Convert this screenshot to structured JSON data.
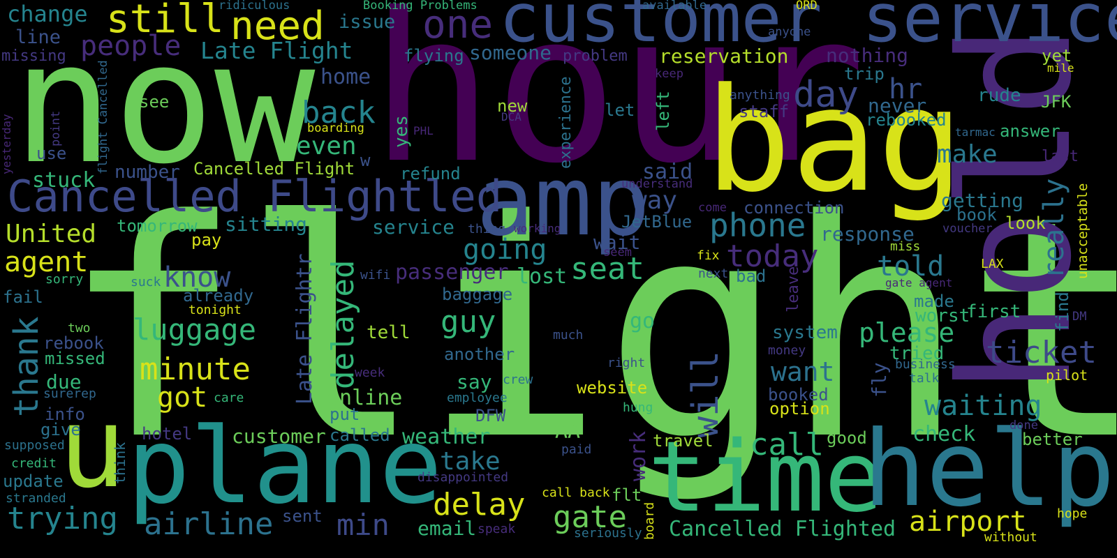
{
  "words": [
    {
      "text": "flight",
      "color": "#6ccd5a",
      "vertical": false
    },
    {
      "text": "hour",
      "color": "#440154",
      "vertical": false
    },
    {
      "text": "now",
      "color": "#6ccd5a",
      "vertical": false
    },
    {
      "text": "hold",
      "color": "#482878",
      "vertical": true
    },
    {
      "text": "bag",
      "color": "#d8e219",
      "vertical": false
    },
    {
      "text": "customer service",
      "color": "#3b528b",
      "vertical": false
    },
    {
      "text": "plane",
      "color": "#21918c",
      "vertical": false
    },
    {
      "text": "u",
      "color": "#a0da39",
      "vertical": false
    },
    {
      "text": "time",
      "color": "#35b779",
      "vertical": false
    },
    {
      "text": "help",
      "color": "#2a788e",
      "vertical": false
    },
    {
      "text": "amp",
      "color": "#3b528b",
      "vertical": false
    },
    {
      "text": "Cancelled Flightled",
      "color": "#3e4a89",
      "vertical": false
    },
    {
      "text": "delayed",
      "color": "#35b779",
      "vertical": true
    },
    {
      "text": "still",
      "color": "#d8e219",
      "vertical": false
    },
    {
      "text": "need",
      "color": "#d8e219",
      "vertical": false
    },
    {
      "text": "one",
      "color": "#472d7b",
      "vertical": false
    },
    {
      "text": "people",
      "color": "#472d7b",
      "vertical": false
    },
    {
      "text": "Late Flight",
      "color": "#25848e",
      "vertical": false
    },
    {
      "text": "change",
      "color": "#25848e",
      "vertical": false
    },
    {
      "text": "issue",
      "color": "#2a788e",
      "vertical": false
    },
    {
      "text": "line",
      "color": "#3b528b",
      "vertical": false
    },
    {
      "text": "missing",
      "color": "#443983",
      "vertical": false
    },
    {
      "text": "ridiculous",
      "color": "#2c728e",
      "vertical": false
    },
    {
      "text": "Booking Problems",
      "color": "#35b779",
      "vertical": false
    },
    {
      "text": "available",
      "color": "#31688e",
      "vertical": false
    },
    {
      "text": "ORD",
      "color": "#d8e219",
      "vertical": false
    },
    {
      "text": "anyone",
      "color": "#3b528b",
      "vertical": false
    },
    {
      "text": "reservation",
      "color": "#b5de2b",
      "vertical": false
    },
    {
      "text": "nothing",
      "color": "#472d7b",
      "vertical": false
    },
    {
      "text": "yet",
      "color": "#a0da39",
      "vertical": false
    },
    {
      "text": "mile",
      "color": "#d8e219",
      "vertical": false
    },
    {
      "text": "flying",
      "color": "#2a788e",
      "vertical": false
    },
    {
      "text": "someone",
      "color": "#31688e",
      "vertical": false
    },
    {
      "text": "problem",
      "color": "#443983",
      "vertical": false
    },
    {
      "text": "home",
      "color": "#3b528b",
      "vertical": false
    },
    {
      "text": "keep",
      "color": "#482878",
      "vertical": false
    },
    {
      "text": "trip",
      "color": "#2a788e",
      "vertical": false
    },
    {
      "text": "day",
      "color": "#3e4a89",
      "vertical": false
    },
    {
      "text": "hr",
      "color": "#3b528b",
      "vertical": false
    },
    {
      "text": "rude",
      "color": "#25848e",
      "vertical": false
    },
    {
      "text": "anything",
      "color": "#3b528b",
      "vertical": false
    },
    {
      "text": "JFK",
      "color": "#6ccd5a",
      "vertical": false
    },
    {
      "text": "never",
      "color": "#31688e",
      "vertical": false
    },
    {
      "text": "staff",
      "color": "#443983",
      "vertical": false
    },
    {
      "text": "rebooked",
      "color": "#25848e",
      "vertical": false
    },
    {
      "text": "tarmac",
      "color": "#31688e",
      "vertical": false
    },
    {
      "text": "answer",
      "color": "#35b779",
      "vertical": false
    },
    {
      "text": "last",
      "color": "#482878",
      "vertical": false
    },
    {
      "text": "back",
      "color": "#25848e",
      "vertical": false
    },
    {
      "text": "see",
      "color": "#6ccd5a",
      "vertical": false
    },
    {
      "text": "new",
      "color": "#a0da39",
      "vertical": false
    },
    {
      "text": "let",
      "color": "#2a788e",
      "vertical": false
    },
    {
      "text": "DCA",
      "color": "#443983",
      "vertical": false
    },
    {
      "text": "PHL",
      "color": "#482878",
      "vertical": false
    },
    {
      "text": "boarding",
      "color": "#d8e219",
      "vertical": false
    },
    {
      "text": "experience",
      "color": "#2c728e",
      "vertical": true
    },
    {
      "text": "left",
      "color": "#35b779",
      "vertical": true
    },
    {
      "text": "yes",
      "color": "#35b779",
      "vertical": true
    },
    {
      "text": "even",
      "color": "#35b779",
      "vertical": false
    },
    {
      "text": "make",
      "color": "#2a788e",
      "vertical": false
    },
    {
      "text": "thank",
      "color": "#2a788e",
      "vertical": true
    },
    {
      "text": "number",
      "color": "#3b528b",
      "vertical": false
    },
    {
      "text": "Cancelled Flight",
      "color": "#a0da39",
      "vertical": false
    },
    {
      "text": "w",
      "color": "#3b528b",
      "vertical": false
    },
    {
      "text": "refund",
      "color": "#25848e",
      "vertical": false
    },
    {
      "text": "said",
      "color": "#3b528b",
      "vertical": false
    },
    {
      "text": "understand",
      "color": "#472d7b",
      "vertical": false
    },
    {
      "text": "getting",
      "color": "#2a788e",
      "vertical": false
    },
    {
      "text": "really",
      "color": "#2c728e",
      "vertical": true
    },
    {
      "text": "unacceptable",
      "color": "#d8e219",
      "vertical": true
    },
    {
      "text": "stuck",
      "color": "#35b779",
      "vertical": false
    },
    {
      "text": "use",
      "color": "#3b528b",
      "vertical": false
    },
    {
      "text": "point",
      "color": "#443983",
      "vertical": true
    },
    {
      "text": "flight Cancelled",
      "color": "#31688e",
      "vertical": true
    },
    {
      "text": "yesterday",
      "color": "#482878",
      "vertical": true
    },
    {
      "text": "way",
      "color": "#3b528b",
      "vertical": false
    },
    {
      "text": "come",
      "color": "#482878",
      "vertical": false
    },
    {
      "text": "connection",
      "color": "#3b528b",
      "vertical": false
    },
    {
      "text": "book",
      "color": "#2c728e",
      "vertical": false
    },
    {
      "text": "voucher",
      "color": "#443983",
      "vertical": false
    },
    {
      "text": "look",
      "color": "#b5de2b",
      "vertical": false
    },
    {
      "text": "United",
      "color": "#b5de2b",
      "vertical": false
    },
    {
      "text": "tomorrow",
      "color": "#35b779",
      "vertical": false
    },
    {
      "text": "sitting",
      "color": "#25848e",
      "vertical": false
    },
    {
      "text": "service",
      "color": "#25848e",
      "vertical": false
    },
    {
      "text": "thing",
      "color": "#3b528b",
      "vertical": false
    },
    {
      "text": "working",
      "color": "#472d7b",
      "vertical": false
    },
    {
      "text": "JetBlue",
      "color": "#31688e",
      "vertical": false
    },
    {
      "text": "phone",
      "color": "#2a788e",
      "vertical": false
    },
    {
      "text": "response",
      "color": "#31688e",
      "vertical": false
    },
    {
      "text": "agent",
      "color": "#d8e219",
      "vertical": false
    },
    {
      "text": "pay",
      "color": "#d8e219",
      "vertical": false
    },
    {
      "text": "know",
      "color": "#3b528b",
      "vertical": false
    },
    {
      "text": "going",
      "color": "#25848e",
      "vertical": false
    },
    {
      "text": "wait",
      "color": "#3b528b",
      "vertical": false
    },
    {
      "text": "seem",
      "color": "#482878",
      "vertical": false
    },
    {
      "text": "fix",
      "color": "#d8e219",
      "vertical": false
    },
    {
      "text": "today",
      "color": "#472d7b",
      "vertical": false
    },
    {
      "text": "miss",
      "color": "#a0da39",
      "vertical": false
    },
    {
      "text": "LAX",
      "color": "#d8e219",
      "vertical": false
    },
    {
      "text": "told",
      "color": "#2a788e",
      "vertical": false
    },
    {
      "text": "seat",
      "color": "#35b779",
      "vertical": false
    },
    {
      "text": "sorry",
      "color": "#35b779",
      "vertical": false
    },
    {
      "text": "suck",
      "color": "#2a788e",
      "vertical": false
    },
    {
      "text": "already",
      "color": "#31688e",
      "vertical": false
    },
    {
      "text": "tonight",
      "color": "#d8e219",
      "vertical": false
    },
    {
      "text": "passenger",
      "color": "#472d7b",
      "vertical": false
    },
    {
      "text": "wifi",
      "color": "#3b528b",
      "vertical": false
    },
    {
      "text": "lost",
      "color": "#35b779",
      "vertical": false
    },
    {
      "text": "next",
      "color": "#3b528b",
      "vertical": false
    },
    {
      "text": "bad",
      "color": "#2c728e",
      "vertical": false
    },
    {
      "text": "leave",
      "color": "#472d7b",
      "vertical": true
    },
    {
      "text": "gate agent",
      "color": "#482878",
      "vertical": false
    },
    {
      "text": "fail",
      "color": "#2c728e",
      "vertical": false
    },
    {
      "text": "baggage",
      "color": "#31688e",
      "vertical": false
    },
    {
      "text": "made",
      "color": "#2a788e",
      "vertical": false
    },
    {
      "text": "first",
      "color": "#35b779",
      "vertical": false
    },
    {
      "text": "find",
      "color": "#2a788e",
      "vertical": true
    },
    {
      "text": "DM",
      "color": "#443983",
      "vertical": false
    },
    {
      "text": "luggage",
      "color": "#35b779",
      "vertical": false
    },
    {
      "text": "guy",
      "color": "#35b779",
      "vertical": false
    },
    {
      "text": "go",
      "color": "#35b779",
      "vertical": false
    },
    {
      "text": "two",
      "color": "#6ccd5a",
      "vertical": false
    },
    {
      "text": "worst",
      "color": "#35b779",
      "vertical": false
    },
    {
      "text": "please",
      "color": "#35b779",
      "vertical": false
    },
    {
      "text": "Late Flightr",
      "color": "#3b528b",
      "vertical": true
    },
    {
      "text": "tell",
      "color": "#a0da39",
      "vertical": false
    },
    {
      "text": "system",
      "color": "#2a788e",
      "vertical": false
    },
    {
      "text": "will",
      "color": "#3b528b",
      "vertical": true
    },
    {
      "text": "rebook",
      "color": "#3b528b",
      "vertical": false
    },
    {
      "text": "much",
      "color": "#3b528b",
      "vertical": false
    },
    {
      "text": "ticket",
      "color": "#3e4a89",
      "vertical": false
    },
    {
      "text": "missed",
      "color": "#35b779",
      "vertical": false
    },
    {
      "text": "minute",
      "color": "#d8e219",
      "vertical": false
    },
    {
      "text": "another",
      "color": "#31688e",
      "vertical": false
    },
    {
      "text": "money",
      "color": "#443983",
      "vertical": false
    },
    {
      "text": "tried",
      "color": "#35b779",
      "vertical": false
    },
    {
      "text": "right",
      "color": "#3b528b",
      "vertical": false
    },
    {
      "text": "business",
      "color": "#31688e",
      "vertical": false
    },
    {
      "text": "fly",
      "color": "#3b528b",
      "vertical": true
    },
    {
      "text": "want",
      "color": "#2c728e",
      "vertical": false
    },
    {
      "text": "week",
      "color": "#472d7b",
      "vertical": false
    },
    {
      "text": "crew",
      "color": "#2c728e",
      "vertical": false
    },
    {
      "text": "talk",
      "color": "#2c728e",
      "vertical": false
    },
    {
      "text": "pilot",
      "color": "#d8e219",
      "vertical": false
    },
    {
      "text": "got",
      "color": "#d8e219",
      "vertical": false
    },
    {
      "text": "due",
      "color": "#35b779",
      "vertical": false
    },
    {
      "text": "say",
      "color": "#35b779",
      "vertical": false
    },
    {
      "text": "website",
      "color": "#d8e219",
      "vertical": false
    },
    {
      "text": "booked",
      "color": "#3b528b",
      "vertical": false
    },
    {
      "text": "surerep",
      "color": "#31688e",
      "vertical": false
    },
    {
      "text": "care",
      "color": "#35b779",
      "vertical": false
    },
    {
      "text": "employee",
      "color": "#2a788e",
      "vertical": false
    },
    {
      "text": "hung",
      "color": "#35b779",
      "vertical": false
    },
    {
      "text": "online",
      "color": "#6ccd5a",
      "vertical": false
    },
    {
      "text": "waiting",
      "color": "#25848e",
      "vertical": false
    },
    {
      "text": "info",
      "color": "#3b528b",
      "vertical": false
    },
    {
      "text": "put",
      "color": "#2c728e",
      "vertical": false
    },
    {
      "text": "DFW",
      "color": "#3b528b",
      "vertical": false
    },
    {
      "text": "option",
      "color": "#d8e219",
      "vertical": false
    },
    {
      "text": "done",
      "color": "#443983",
      "vertical": false
    },
    {
      "text": "give",
      "color": "#2c728e",
      "vertical": false
    },
    {
      "text": "hotel",
      "color": "#443983",
      "vertical": false
    },
    {
      "text": "customer",
      "color": "#6ccd5a",
      "vertical": false
    },
    {
      "text": "called",
      "color": "#2a788e",
      "vertical": false
    },
    {
      "text": "AA",
      "color": "#6ccd5a",
      "vertical": false
    },
    {
      "text": "weather",
      "color": "#35b779",
      "vertical": false
    },
    {
      "text": "call",
      "color": "#35b779",
      "vertical": false
    },
    {
      "text": "check",
      "color": "#35b779",
      "vertical": false
    },
    {
      "text": "supposed",
      "color": "#2c728e",
      "vertical": false
    },
    {
      "text": "think",
      "color": "#2c728e",
      "vertical": true
    },
    {
      "text": "work",
      "color": "#472d7b",
      "vertical": true
    },
    {
      "text": "travel",
      "color": "#a0da39",
      "vertical": false
    },
    {
      "text": "good",
      "color": "#6ccd5a",
      "vertical": false
    },
    {
      "text": "better",
      "color": "#6ccd5a",
      "vertical": false
    },
    {
      "text": "credit",
      "color": "#35b779",
      "vertical": false
    },
    {
      "text": "take",
      "color": "#2a788e",
      "vertical": false
    },
    {
      "text": "paid",
      "color": "#3b528b",
      "vertical": false
    },
    {
      "text": "update",
      "color": "#2a788e",
      "vertical": false
    },
    {
      "text": "disappointed",
      "color": "#443983",
      "vertical": false
    },
    {
      "text": "delay",
      "color": "#d8e219",
      "vertical": false
    },
    {
      "text": "stranded",
      "color": "#2a788e",
      "vertical": false
    },
    {
      "text": "call back",
      "color": "#d8e219",
      "vertical": false
    },
    {
      "text": "flt",
      "color": "#6ccd5a",
      "vertical": false
    },
    {
      "text": "board",
      "color": "#d8e219",
      "vertical": true
    },
    {
      "text": "trying",
      "color": "#25848e",
      "vertical": false
    },
    {
      "text": "airline",
      "color": "#2c728e",
      "vertical": false
    },
    {
      "text": "sent",
      "color": "#3b528b",
      "vertical": false
    },
    {
      "text": "min",
      "color": "#3e4a89",
      "vertical": false
    },
    {
      "text": "email",
      "color": "#35b779",
      "vertical": false
    },
    {
      "text": "speak",
      "color": "#472d7b",
      "vertical": false
    },
    {
      "text": "gate",
      "color": "#6ccd5a",
      "vertical": false
    },
    {
      "text": "seriously",
      "color": "#2c728e",
      "vertical": false
    },
    {
      "text": "Cancelled Flighted",
      "color": "#35b779",
      "vertical": false
    },
    {
      "text": "airport",
      "color": "#d8e219",
      "vertical": false
    },
    {
      "text": "hope",
      "color": "#d8e219",
      "vertical": false
    },
    {
      "text": "without",
      "color": "#d8e219",
      "vertical": false
    }
  ]
}
